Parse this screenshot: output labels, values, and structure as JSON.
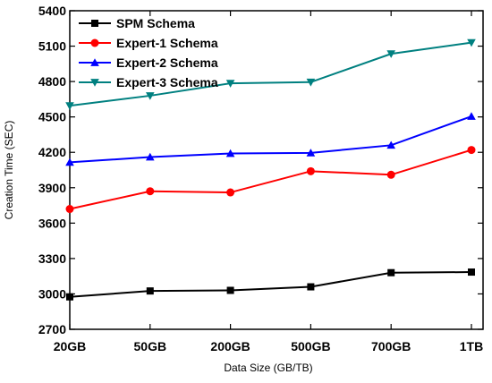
{
  "chart_data": {
    "type": "line",
    "xlabel": "Data Size (GB/TB)",
    "ylabel": "Creation Time (SEC)",
    "categories": [
      "20GB",
      "50GB",
      "200GB",
      "500GB",
      "700GB",
      "1TB"
    ],
    "ylim": [
      2700,
      5400
    ],
    "yticks": [
      2700,
      3000,
      3300,
      3600,
      3900,
      4200,
      4500,
      4800,
      5100,
      5400
    ],
    "grid": false,
    "legend_position": "top-left",
    "series": [
      {
        "name": "SPM Schema",
        "color": "#000000",
        "marker": "square",
        "values": [
          2975,
          3025,
          3030,
          3060,
          3180,
          3185
        ]
      },
      {
        "name": "Expert-1 Schema",
        "color": "#ff0000",
        "marker": "circle",
        "values": [
          3720,
          3870,
          3860,
          4040,
          4010,
          4220
        ]
      },
      {
        "name": "Expert-2 Schema",
        "color": "#0000ff",
        "marker": "triangle-up",
        "values": [
          4115,
          4160,
          4190,
          4195,
          4260,
          4505
        ]
      },
      {
        "name": "Expert-3 Schema",
        "color": "#008080",
        "marker": "triangle-down",
        "values": [
          4595,
          4680,
          4785,
          4795,
          5035,
          5130
        ]
      }
    ]
  }
}
